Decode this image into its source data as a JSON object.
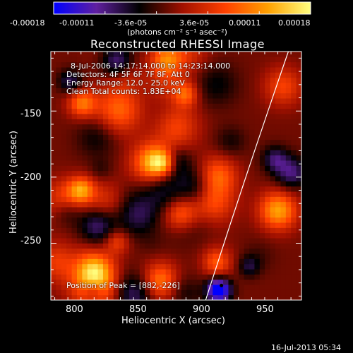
{
  "chart_data": {
    "type": "heatmap",
    "title": "Reconstructed RHESSI Image",
    "xlabel": "Heliocentric X (arcsec)",
    "ylabel": "Heliocentric Y (arcsec)",
    "xlim": [
      782,
      973
    ],
    "ylim": [
      -293,
      -105
    ],
    "x_ticks": [
      800,
      850,
      900,
      950
    ],
    "y_ticks": [
      -150,
      -200,
      -250
    ],
    "colorbar": {
      "range": [
        -0.00018,
        0.00018
      ],
      "ticks": [
        "-0.00018",
        "-0.00011",
        "-3.6e-05",
        "3.6e-05",
        "0.00011",
        "0.00018"
      ],
      "unit_label": "(photons cm⁻² s⁻¹ asec⁻²)",
      "colormap": [
        "#0000ff",
        "#6020a0",
        "#000000",
        "#a01000",
        "#ff4000",
        "#ffa000",
        "#ffff80"
      ]
    },
    "annotations": [
      "8-Jul-2006 14:17:14.000 to 14:23:14.000",
      "Detectors: 4F 5F 6F 7F 8F, Att 0",
      "Energy Range: 12.0 - 25.0 keV",
      "Clean     Total counts: 1.83E+04"
    ],
    "peak_label": "Position of Peak = [882,-226]",
    "peak": [
      882,
      -226
    ],
    "grid": false
  },
  "footer": "16-Jul-2013 05:34"
}
